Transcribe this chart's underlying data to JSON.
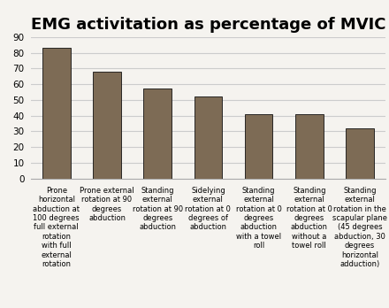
{
  "title": "EMG activitation as percentage of MVIC",
  "values": [
    83,
    68,
    57,
    52,
    41,
    41,
    32
  ],
  "bar_color": "#7d6b55",
  "bar_edge_color": "#111111",
  "ylim": [
    0,
    90
  ],
  "yticks": [
    0,
    10,
    20,
    30,
    40,
    50,
    60,
    70,
    80,
    90
  ],
  "xlabel_texts": [
    "Prone\nhorizontal\nabduction at\n100 degrees\nfull external\nrotation\nwith full\nexternal\nrotation",
    "Prone external\nrotation at 90\ndegrees\nabduction",
    "Standing\nexternal\nrotation at 90\ndegrees\nabduction",
    "Sidelying\nexternal\nrotation at 0\ndegrees of\nabduction",
    "Standing\nexternal\nrotation at 0\ndegrees\nabduction\nwith a towel\nroll",
    "Standing\nexternal\nrotation at 0\ndegrees\nabduction\nwithout a\ntowel roll",
    "Standing\nexternal\nrotation in the\nscapular plane\n(45 degrees\nabduction, 30\ndegrees\nhorizontal\nadduction)"
  ],
  "title_fontsize": 13,
  "tick_fontsize": 6.0,
  "ytick_fontsize": 7.5,
  "background_color": "#f5f3ef",
  "plot_bg_color": "#f5f3ef",
  "grid_color": "#cccccc"
}
